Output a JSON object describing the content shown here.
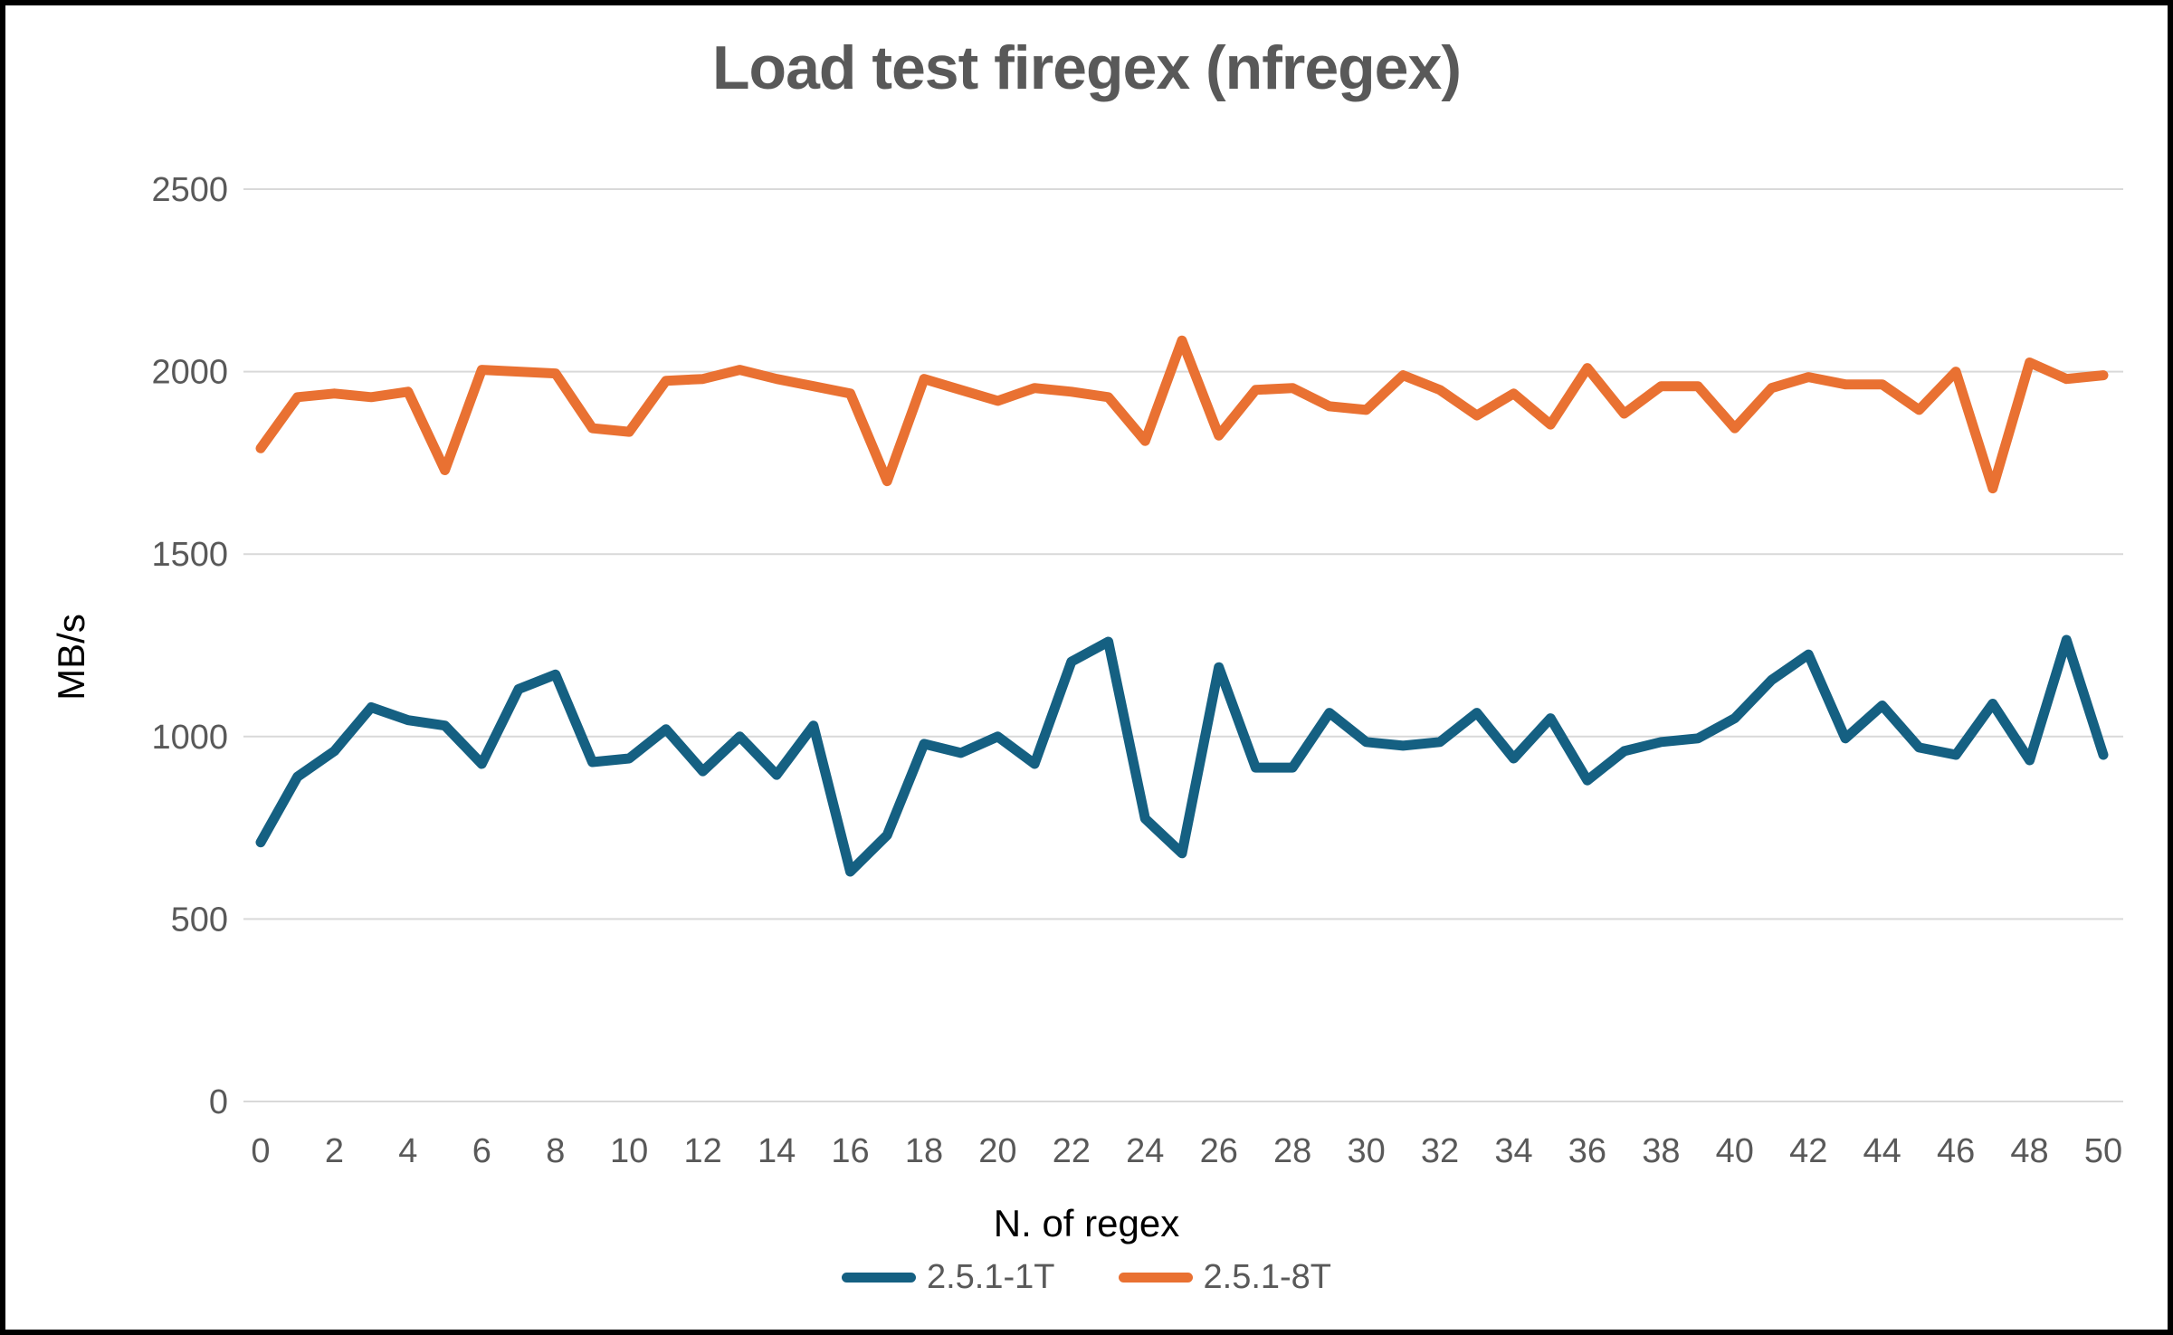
{
  "chart_data": {
    "type": "line",
    "title": "Load test firegex (nfregex)",
    "xlabel": "N. of regex",
    "ylabel": "MB/s",
    "x": [
      0,
      1,
      2,
      3,
      4,
      5,
      6,
      7,
      8,
      9,
      10,
      11,
      12,
      13,
      14,
      15,
      16,
      17,
      18,
      19,
      20,
      21,
      22,
      23,
      24,
      25,
      26,
      27,
      28,
      29,
      30,
      31,
      32,
      33,
      34,
      35,
      36,
      37,
      38,
      39,
      40,
      41,
      42,
      43,
      44,
      45,
      46,
      47,
      48,
      49,
      50
    ],
    "xticks": [
      0,
      2,
      4,
      6,
      8,
      10,
      12,
      14,
      16,
      18,
      20,
      22,
      24,
      26,
      28,
      30,
      32,
      34,
      36,
      38,
      40,
      42,
      44,
      46,
      48,
      50
    ],
    "yticks": [
      0,
      500,
      1000,
      1500,
      2000,
      2500
    ],
    "ylim": [
      0,
      2500
    ],
    "grid": "horizontal",
    "legend_position": "bottom",
    "series": [
      {
        "name": "2.5.1-1T",
        "color": "#156082",
        "values": [
          710,
          890,
          960,
          1080,
          1045,
          1030,
          925,
          1130,
          1170,
          930,
          940,
          1020,
          905,
          1000,
          895,
          1030,
          630,
          730,
          980,
          955,
          1000,
          925,
          1205,
          1260,
          775,
          680,
          1190,
          915,
          915,
          1065,
          985,
          975,
          985,
          1065,
          940,
          1050,
          880,
          960,
          985,
          995,
          1050,
          1155,
          1225,
          995,
          1085,
          970,
          950,
          1090,
          935,
          1265,
          950
        ]
      },
      {
        "name": "2.5.1-8T",
        "color": "#E97132",
        "values": [
          1790,
          1930,
          1940,
          1930,
          1945,
          1730,
          2005,
          2000,
          1995,
          1845,
          1835,
          1975,
          1980,
          2005,
          1980,
          1960,
          1940,
          1700,
          1980,
          1950,
          1920,
          1955,
          1945,
          1930,
          1810,
          2085,
          1825,
          1950,
          1955,
          1905,
          1895,
          1990,
          1950,
          1880,
          1940,
          1855,
          2010,
          1885,
          1960,
          1960,
          1845,
          1955,
          1985,
          1965,
          1965,
          1895,
          2000,
          1680,
          2025,
          1980,
          1990
        ]
      }
    ],
    "colors": {
      "title_text": "#595959",
      "tick_text": "#595959",
      "axis_title_text": "#000000",
      "gridline": "#D9D9D9",
      "background": "#FFFFFF",
      "border": "#000000"
    }
  }
}
